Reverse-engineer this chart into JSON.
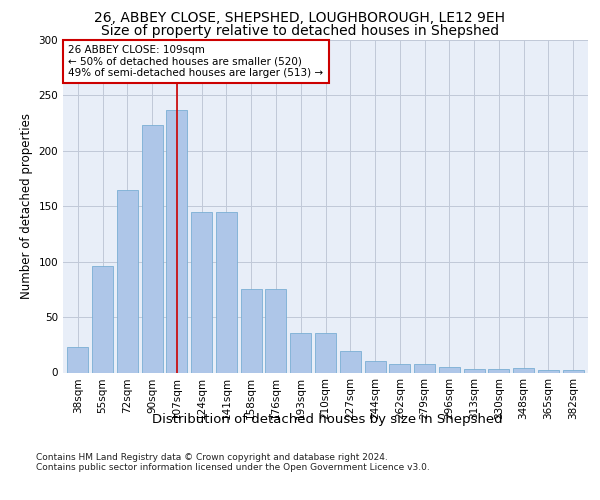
{
  "title1": "26, ABBEY CLOSE, SHEPSHED, LOUGHBOROUGH, LE12 9EH",
  "title2": "Size of property relative to detached houses in Shepshed",
  "xlabel": "Distribution of detached houses by size in Shepshed",
  "ylabel": "Number of detached properties",
  "categories": [
    "38sqm",
    "55sqm",
    "72sqm",
    "90sqm",
    "107sqm",
    "124sqm",
    "141sqm",
    "158sqm",
    "176sqm",
    "193sqm",
    "210sqm",
    "227sqm",
    "244sqm",
    "262sqm",
    "279sqm",
    "296sqm",
    "313sqm",
    "330sqm",
    "348sqm",
    "365sqm",
    "382sqm"
  ],
  "values": [
    23,
    96,
    165,
    223,
    237,
    145,
    145,
    75,
    75,
    36,
    36,
    19,
    10,
    8,
    8,
    5,
    3,
    3,
    4,
    2,
    2
  ],
  "bar_color": "#aec6e8",
  "bar_edge_color": "#7aafd4",
  "vline_x": 4,
  "vline_color": "#cc0000",
  "annotation_text": "26 ABBEY CLOSE: 109sqm\n← 50% of detached houses are smaller (520)\n49% of semi-detached houses are larger (513) →",
  "annotation_box_color": "#ffffff",
  "annotation_box_edge": "#cc0000",
  "footer": "Contains HM Land Registry data © Crown copyright and database right 2024.\nContains public sector information licensed under the Open Government Licence v3.0.",
  "ylim": [
    0,
    300
  ],
  "background_color": "#e8eef8",
  "title1_fontsize": 10,
  "title2_fontsize": 10,
  "xlabel_fontsize": 9.5,
  "ylabel_fontsize": 8.5,
  "tick_fontsize": 7.5,
  "footer_fontsize": 6.5,
  "annotation_fontsize": 7.5
}
